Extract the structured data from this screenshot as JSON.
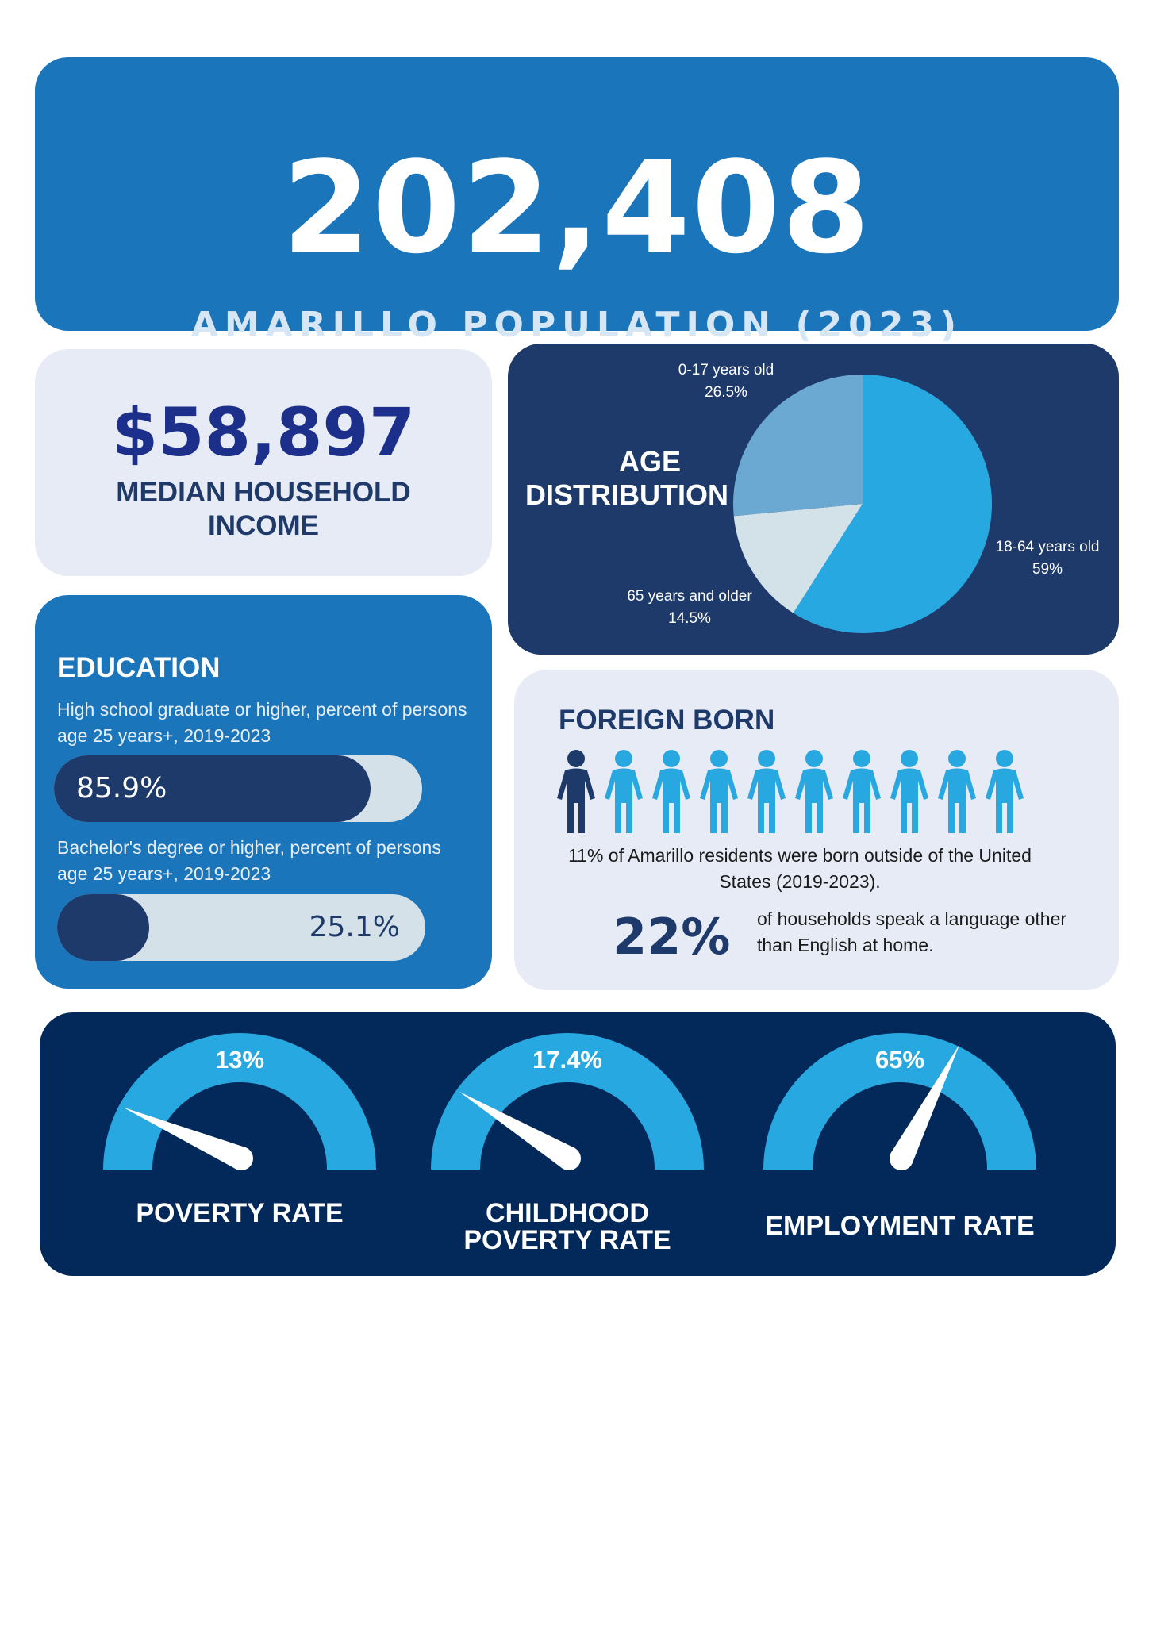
{
  "population": {
    "value": "202,408",
    "label": "AMARILLO POPULATION (2023)"
  },
  "income": {
    "value": "$58,897",
    "label_line1": "MEDIAN HOUSEHOLD",
    "label_line2": "INCOME"
  },
  "age": {
    "title_line1": "AGE",
    "title_line2": "DISTRIBUTION"
  },
  "chart_data": {
    "type": "pie",
    "title": "AGE DISTRIBUTION",
    "slices": [
      {
        "label": "18-64 years old",
        "value": 59,
        "display": "59%",
        "color": "#27a8e0"
      },
      {
        "label": "65 years and older",
        "value": 14.5,
        "display": "14.5%",
        "color": "#d3e1e8"
      },
      {
        "label": "0-17 years old",
        "value": 26.5,
        "display": "26.5%",
        "color": "#6ba9d3"
      }
    ]
  },
  "education": {
    "title": "EDUCATION",
    "hs": {
      "desc": "High school graduate or higher, percent of persons age 25 years+, 2019-2023",
      "value": "85.9%",
      "fraction": 0.859
    },
    "ba": {
      "desc": "Bachelor's degree or higher, percent of persons age 25 years+, 2019-2023",
      "value": "25.1%",
      "fraction": 0.251
    }
  },
  "foreign_born": {
    "title": "FOREIGN BORN",
    "highlighted_people": 1,
    "total_people": 10,
    "text": "11% of Amarillo residents were born outside of the United States (2019-2023).",
    "language_pct": "22%",
    "language_text": "of households speak a language other than English at home."
  },
  "gauges": [
    {
      "value": "13%",
      "fraction": 0.13,
      "label_line1": "POVERTY RATE",
      "label_line2": ""
    },
    {
      "value": "17.4%",
      "fraction": 0.174,
      "label_line1": "CHILDHOOD",
      "label_line2": "POVERTY RATE"
    },
    {
      "value": "65%",
      "fraction": 0.65,
      "label_line1": "EMPLOYMENT RATE",
      "label_line2": ""
    }
  ],
  "colors": {
    "primary_blue": "#1b75bb",
    "navy": "#1e3a6b",
    "dark_navy": "#03285a",
    "light_bg": "#e6ebf5",
    "sky": "#27a8e0",
    "person_dark": "#1e3a6b",
    "person_light": "#27a8e0"
  }
}
